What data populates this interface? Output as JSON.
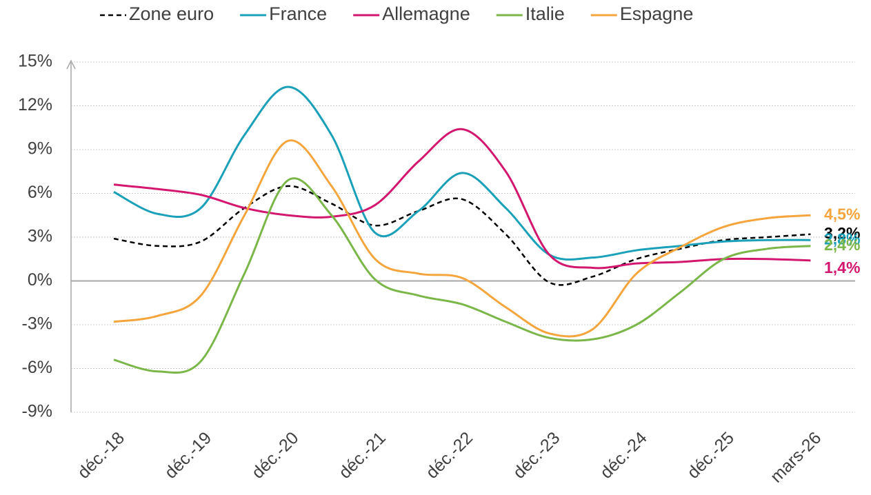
{
  "chart_data": {
    "type": "line",
    "categories": [
      "déc.-18",
      null,
      "déc.-19",
      null,
      "déc.-20",
      null,
      "déc.-21",
      null,
      "déc.-22",
      null,
      "déc.-23",
      null,
      "déc.-24",
      null,
      "déc.-25",
      null,
      "mars-26"
    ],
    "series": [
      {
        "name": "Zone euro",
        "color": "#000000",
        "style": "dashed",
        "values": [
          2.9,
          2.4,
          2.7,
          5.0,
          6.5,
          5.3,
          3.8,
          4.8,
          5.6,
          3.2,
          -0.1,
          0.3,
          1.5,
          2.2,
          2.8,
          3.0,
          3.2
        ],
        "value_labels": [
          null,
          null,
          null,
          null,
          null,
          null,
          null,
          null,
          null,
          null,
          null,
          null,
          null,
          null,
          null,
          null,
          "3,2%"
        ]
      },
      {
        "name": "France",
        "color": "#1aa0b8",
        "style": "solid",
        "values": [
          6.1,
          4.6,
          5.0,
          10.0,
          13.3,
          10.0,
          3.3,
          4.8,
          7.4,
          5.0,
          1.8,
          1.6,
          2.1,
          2.4,
          2.7,
          2.8,
          2.8
        ],
        "value_labels": [
          null,
          null,
          null,
          null,
          null,
          null,
          null,
          null,
          null,
          null,
          null,
          null,
          null,
          null,
          null,
          null,
          "2,8%"
        ]
      },
      {
        "name": "Allemagne",
        "color": "#d3176f",
        "style": "solid",
        "values": [
          6.6,
          6.3,
          5.9,
          5.0,
          4.5,
          4.4,
          5.2,
          8.2,
          10.4,
          7.5,
          1.8,
          0.9,
          1.2,
          1.3,
          1.5,
          1.5,
          1.4
        ],
        "value_labels": [
          null,
          null,
          null,
          null,
          null,
          null,
          null,
          null,
          null,
          null,
          null,
          null,
          null,
          null,
          null,
          null,
          "1,4%"
        ]
      },
      {
        "name": "Italie",
        "color": "#7ab648",
        "style": "solid",
        "values": [
          -5.4,
          -6.2,
          -5.5,
          0.5,
          6.9,
          4.5,
          0.1,
          -1.0,
          -1.6,
          -2.8,
          -3.9,
          -4.0,
          -3.0,
          -0.8,
          1.5,
          2.2,
          2.4
        ],
        "value_labels": [
          null,
          null,
          null,
          null,
          null,
          null,
          null,
          null,
          null,
          null,
          null,
          null,
          null,
          null,
          null,
          null,
          "2,4%"
        ]
      },
      {
        "name": "Espagne",
        "color": "#f5a53c",
        "style": "solid",
        "values": [
          -2.8,
          -2.4,
          -1.0,
          4.5,
          9.6,
          6.5,
          1.5,
          0.5,
          0.2,
          -1.8,
          -3.6,
          -3.3,
          0.5,
          2.3,
          3.7,
          4.3,
          4.5
        ],
        "value_labels": [
          null,
          null,
          null,
          null,
          null,
          null,
          null,
          null,
          null,
          null,
          null,
          null,
          null,
          null,
          null,
          null,
          "4,5%"
        ]
      }
    ],
    "ylim": [
      -9,
      15
    ],
    "yticks": [
      {
        "value": -9,
        "label": "-9%"
      },
      {
        "value": -6,
        "label": "-6%"
      },
      {
        "value": -3,
        "label": "-3%"
      },
      {
        "value": 0,
        "label": "0%"
      },
      {
        "value": 3,
        "label": "3%"
      },
      {
        "value": 6,
        "label": "6%"
      },
      {
        "value": 9,
        "label": "9%"
      },
      {
        "value": 12,
        "label": "12%"
      },
      {
        "value": 15,
        "label": "15%"
      }
    ],
    "grid": true,
    "legend": "top"
  }
}
